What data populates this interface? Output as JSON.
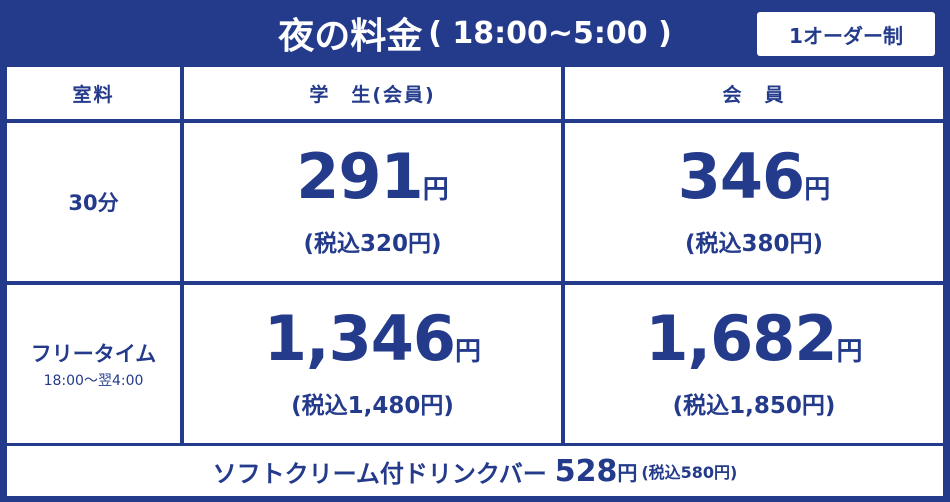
{
  "header": {
    "title": "夜の料金",
    "time_range": "( 18:00~5:00 )",
    "badge": "1オーダー制"
  },
  "table": {
    "col_headers": [
      "室料",
      "学　生(会員)",
      "会　員"
    ],
    "rows": [
      {
        "label": "30分",
        "sublabel": "",
        "student": {
          "price": "291",
          "yen": "円",
          "tax": "(税込320円)"
        },
        "member": {
          "price": "346",
          "yen": "円",
          "tax": "(税込380円)"
        }
      },
      {
        "label": "フリータイム",
        "sublabel": "18:00〜翌4:00",
        "student": {
          "price": "1,346",
          "yen": "円",
          "tax": "(税込1,480円)"
        },
        "member": {
          "price": "1,682",
          "yen": "円",
          "tax": "(税込1,850円)"
        }
      }
    ]
  },
  "footer": {
    "drink": "ソフトクリーム付ドリンクバー",
    "price": "528",
    "yen": "円",
    "tax": "(税込580円)"
  },
  "colors": {
    "brand_navy": "#243b8c",
    "cell_bg": "#ffffff"
  }
}
